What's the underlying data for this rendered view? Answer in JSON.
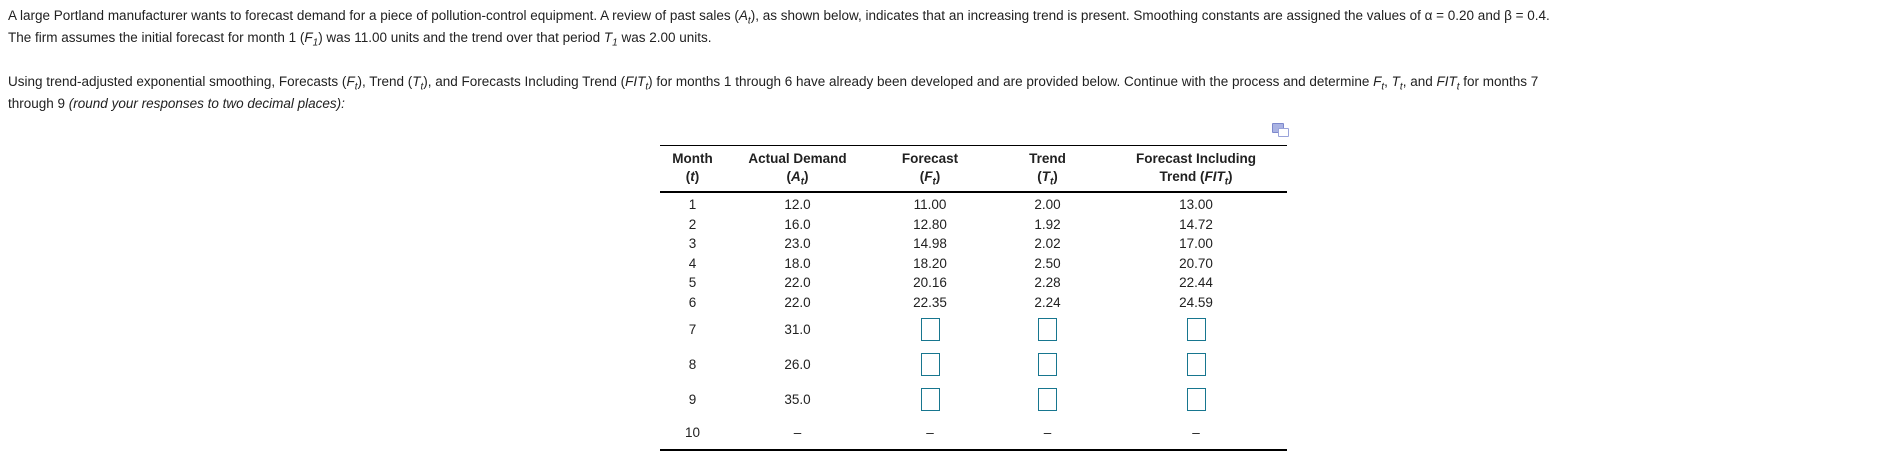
{
  "colors": {
    "input_box_border": "#17768F",
    "popout_icon": "#7d88cc",
    "text": "#212121",
    "table_rule": "#000000"
  },
  "problem": {
    "para1_lines": [
      "A large Portland manufacturer wants to forecast demand for a piece of pollution-control equipment. A review of past sales ([i]A[/i][sub][i]t[/i][/sub]), as shown below, indicates that an increasing trend is present.  Smoothing constants are assigned the values of α = 0.20 and β = 0.4.",
      "The firm assumes the initial forecast for month 1 ([i]F[/i][sub][i]1[/i][/sub]) was 11.00 units and the trend over that period [i]T[/i][sub][i]1[/i][/sub] was 2.00 units."
    ],
    "para2_lines": [
      "Using trend-adjusted exponential smoothing, Forecasts ([i]F[/i][sub][i]t[/i][/sub]), Trend ([i]T[/i][sub][i]t[/i][/sub]), and Forecasts Including Trend ([i]FIT[/i][sub][i]t[/i][/sub]) for months 1 through 6 have already been developed and are provided below.  Continue with the process and determine [i]F[/i][sub][i]t[/i][/sub], [i]T[/i][sub][i]t[/i][/sub], and [i]FIT[/i][sub][i]t[/i][/sub] for months 7",
      "through 9 [i](round your responses to two decimal places):[/i]"
    ]
  },
  "icons": {
    "table_popout": "overlapping-windows-copy-icon"
  },
  "table": {
    "headers": [
      {
        "line1": "Month",
        "line2": "([i]t[/i])"
      },
      {
        "line1": "Actual Demand",
        "line2": "([i]A[/i][sub][i]t[/i][/sub])"
      },
      {
        "line1": "Forecast",
        "line2": "([i]F[/i][sub][i]t[/i][/sub])"
      },
      {
        "line1": "Trend",
        "line2": "([i]T[/i][sub][i]t[/i][/sub])"
      },
      {
        "line1": "Forecast Including",
        "line2": "Trend ([i]FIT[/i][sub][i]t[/i][/sub])"
      }
    ],
    "rows": [
      {
        "month": "1",
        "actual": "12.0",
        "forecast": "11.00",
        "trend": "2.00",
        "fit": "13.00"
      },
      {
        "month": "2",
        "actual": "16.0",
        "forecast": "12.80",
        "trend": "1.92",
        "fit": "14.72"
      },
      {
        "month": "3",
        "actual": "23.0",
        "forecast": "14.98",
        "trend": "2.02",
        "fit": "17.00"
      },
      {
        "month": "4",
        "actual": "18.0",
        "forecast": "18.20",
        "trend": "2.50",
        "fit": "20.70"
      },
      {
        "month": "5",
        "actual": "22.0",
        "forecast": "20.16",
        "trend": "2.28",
        "fit": "22.44"
      },
      {
        "month": "6",
        "actual": "22.0",
        "forecast": "22.35",
        "trend": "2.24",
        "fit": "24.59"
      },
      {
        "month": "7",
        "actual": "31.0",
        "forecast": "",
        "trend": "",
        "fit": ""
      },
      {
        "month": "8",
        "actual": "26.0",
        "forecast": "",
        "trend": "",
        "fit": ""
      },
      {
        "month": "9",
        "actual": "35.0",
        "forecast": "",
        "trend": "",
        "fit": ""
      },
      {
        "month": "10",
        "actual": "–",
        "forecast": "–",
        "trend": "–",
        "fit": "–"
      }
    ]
  }
}
